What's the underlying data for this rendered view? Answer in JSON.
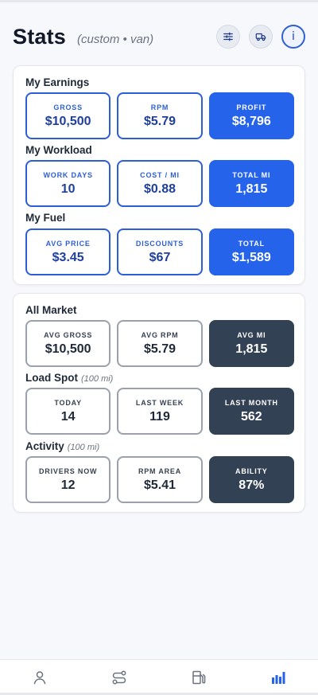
{
  "header": {
    "title": "Stats",
    "subtitle": "(custom • van)",
    "icons": [
      "sliders-icon",
      "truck-icon",
      "info-icon"
    ],
    "info_glyph": "i"
  },
  "card1": {
    "sections": [
      {
        "title": "My Earnings",
        "tiles": [
          {
            "label": "GROSS",
            "value": "$10,500"
          },
          {
            "label": "RPM",
            "value": "$5.79"
          },
          {
            "label": "PROFIT",
            "value": "$8,796"
          }
        ]
      },
      {
        "title": "My Workload",
        "tiles": [
          {
            "label": "WORK DAYS",
            "value": "10"
          },
          {
            "label": "COST / MI",
            "value": "$0.88"
          },
          {
            "label": "TOTAL MI",
            "value": "1,815"
          }
        ]
      },
      {
        "title": "My Fuel",
        "tiles": [
          {
            "label": "AVG PRICE",
            "value": "$3.45"
          },
          {
            "label": "DISCOUNTS",
            "value": "$67"
          },
          {
            "label": "TOTAL",
            "value": "$1,589"
          }
        ]
      }
    ]
  },
  "card2": {
    "sections": [
      {
        "title": "All Market",
        "note": "",
        "tiles": [
          {
            "label": "AVG GROSS",
            "value": "$10,500"
          },
          {
            "label": "AVG RPM",
            "value": "$5.79"
          },
          {
            "label": "AVG MI",
            "value": "1,815"
          }
        ]
      },
      {
        "title": "Load Spot",
        "note": "(100 mi)",
        "tiles": [
          {
            "label": "TODAY",
            "value": "14"
          },
          {
            "label": "LAST WEEK",
            "value": "119"
          },
          {
            "label": "LAST MONTH",
            "value": "562"
          }
        ]
      },
      {
        "title": "Activity",
        "note": "(100 mi)",
        "tiles": [
          {
            "label": "DRIVERS NOW",
            "value": "12"
          },
          {
            "label": "RPM AREA",
            "value": "$5.41"
          },
          {
            "label": "ABILITY",
            "value": "87%"
          }
        ]
      }
    ]
  },
  "nav": {
    "items": [
      "profile-icon",
      "route-icon",
      "fuel-icon",
      "stats-icon"
    ],
    "active": "stats-icon"
  },
  "colors": {
    "accent_blue": "#2563eb",
    "dark_tile": "#334155",
    "nav_inactive": "#6b7280"
  }
}
